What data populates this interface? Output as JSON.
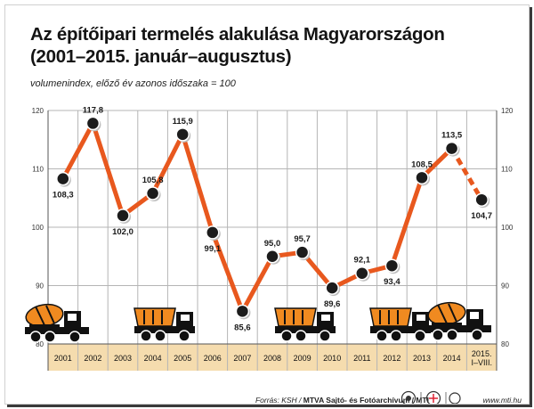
{
  "header": {
    "title_line1": "Az építőipari termelés alakulása Magyarországon",
    "title_line2": "(2001–2015. január–augusztus)",
    "subtitle": "volumenindex, előző év azonos időszaka = 100"
  },
  "footer": {
    "source_prefix": "Forrás: KSH / ",
    "source_bold": "MTVA Sajtó- és Fotóarchívum / MTI",
    "website": "www.mti.hu"
  },
  "colors": {
    "line": "#e8581e",
    "point": "#1c1c1c",
    "band": "#f5dcae",
    "grid": "#b5b5b5"
  },
  "chart_data": {
    "type": "line",
    "categories": [
      "2001",
      "2002",
      "2003",
      "2004",
      "2005",
      "2006",
      "2007",
      "2008",
      "2009",
      "2010",
      "2011",
      "2012",
      "2013",
      "2014",
      "2015.\nI–VIII."
    ],
    "values": [
      108.3,
      117.8,
      102.0,
      105.8,
      115.9,
      99.1,
      85.6,
      95.0,
      95.7,
      89.6,
      92.1,
      93.4,
      108.5,
      113.5,
      104.7
    ],
    "value_labels": [
      "108,3",
      "117,8",
      "102,0",
      "105,8",
      "115,9",
      "99,1",
      "85,6",
      "95,0",
      "95,7",
      "89,6",
      "92,1",
      "93,4",
      "108,5",
      "113,5",
      "104,7"
    ],
    "dashed_last_segment": true,
    "ylim": [
      80,
      120
    ],
    "yticks": [
      80,
      90,
      100,
      110,
      120
    ],
    "ytick_labels": [
      "80",
      "90",
      "100",
      "110",
      "120"
    ],
    "grid": true,
    "legend": "none",
    "truck_icons": [
      "mixer-truck-icon",
      "dump-truck-icon",
      "dump-truck-icon",
      "dump-truck-icon",
      "mixer-truck-icon"
    ]
  }
}
